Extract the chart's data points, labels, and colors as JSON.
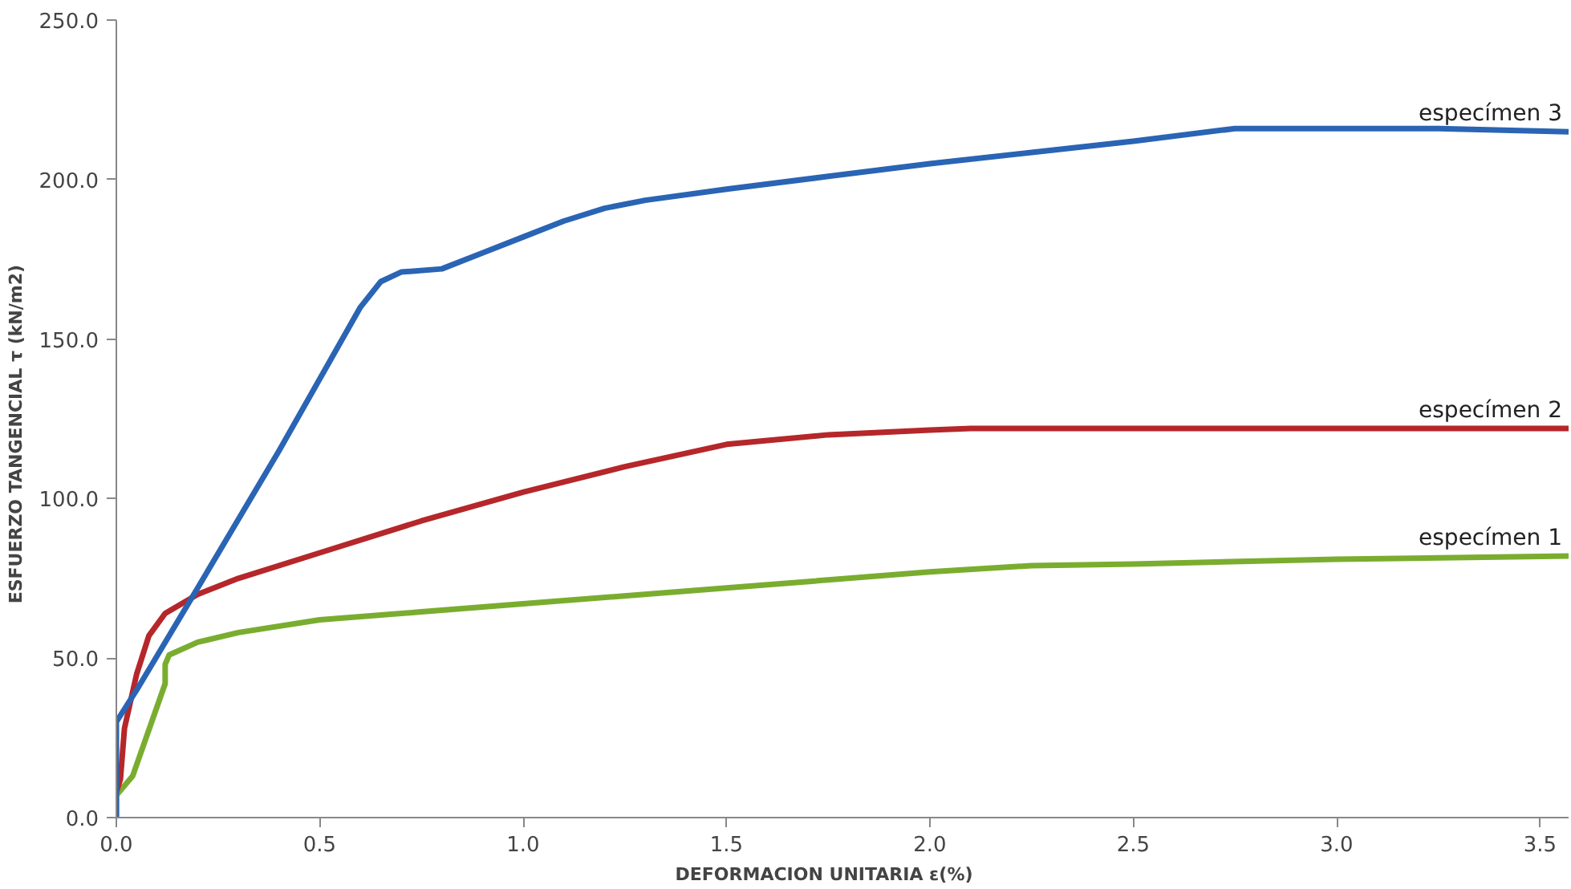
{
  "chart_data": {
    "type": "line",
    "xlabel": "DEFORMACION  UNITARIA      ε(%)",
    "ylabel": "ESFUERZO TANGENCIAL      τ (kN/m2)",
    "xlim": [
      0,
      3.57
    ],
    "ylim": [
      0,
      250
    ],
    "xticks": [
      {
        "value": 0,
        "label": "0.0"
      },
      0.5,
      {
        "value": 1,
        "label": "1.0"
      },
      1.5,
      {
        "value": 2,
        "label": "2.0"
      },
      2.5,
      {
        "value": 3,
        "label": "3.0"
      },
      3.5
    ],
    "yticks": [
      {
        "value": 0,
        "label": "0.0"
      },
      {
        "value": 50,
        "label": "50.0"
      },
      {
        "value": 100,
        "label": "100.0"
      },
      {
        "value": 150,
        "label": "150.0"
      },
      {
        "value": 200,
        "label": "200.0"
      },
      {
        "value": 250,
        "label": "250.0"
      }
    ],
    "grid": false,
    "legend": false,
    "marker": "none",
    "line_style": "solid",
    "series": [
      {
        "name": "especímen 1",
        "color": "#7aad2f",
        "x": [
          0,
          0,
          0.02,
          0.04,
          0.12,
          0.12,
          0.13,
          0.2,
          0.3,
          0.5,
          0.75,
          1.0,
          1.5,
          2.0,
          2.25,
          2.5,
          3.0,
          3.57
        ],
        "values": [
          0,
          7,
          10,
          13,
          42,
          48,
          51,
          55,
          58,
          62,
          64.5,
          67,
          72,
          77,
          79,
          79.5,
          81,
          82
        ]
      },
      {
        "name": "especímen 2",
        "color": "#b5272a",
        "x": [
          0,
          0.01,
          0.02,
          0.05,
          0.08,
          0.12,
          0.2,
          0.3,
          0.5,
          0.75,
          1.0,
          1.25,
          1.5,
          1.75,
          2.0,
          2.1,
          2.5,
          3.0,
          3.57
        ],
        "values": [
          8,
          12,
          28,
          45,
          57,
          64,
          70,
          75,
          83,
          93,
          102,
          110,
          117,
          120,
          121.5,
          122,
          122,
          122,
          122
        ]
      },
      {
        "name": "especímen 3",
        "color": "#2a64b4",
        "x": [
          0,
          0,
          0.05,
          0.2,
          0.4,
          0.6,
          0.65,
          0.7,
          0.8,
          0.9,
          1.0,
          1.1,
          1.2,
          1.3,
          1.5,
          1.75,
          2.0,
          2.25,
          2.5,
          2.75,
          3.0,
          3.25,
          3.57
        ],
        "values": [
          0,
          30,
          40,
          72,
          115,
          160,
          168,
          171,
          172,
          177,
          182,
          187,
          191,
          193.5,
          197,
          201,
          205,
          208.5,
          212,
          216,
          216,
          216,
          215
        ]
      }
    ]
  }
}
